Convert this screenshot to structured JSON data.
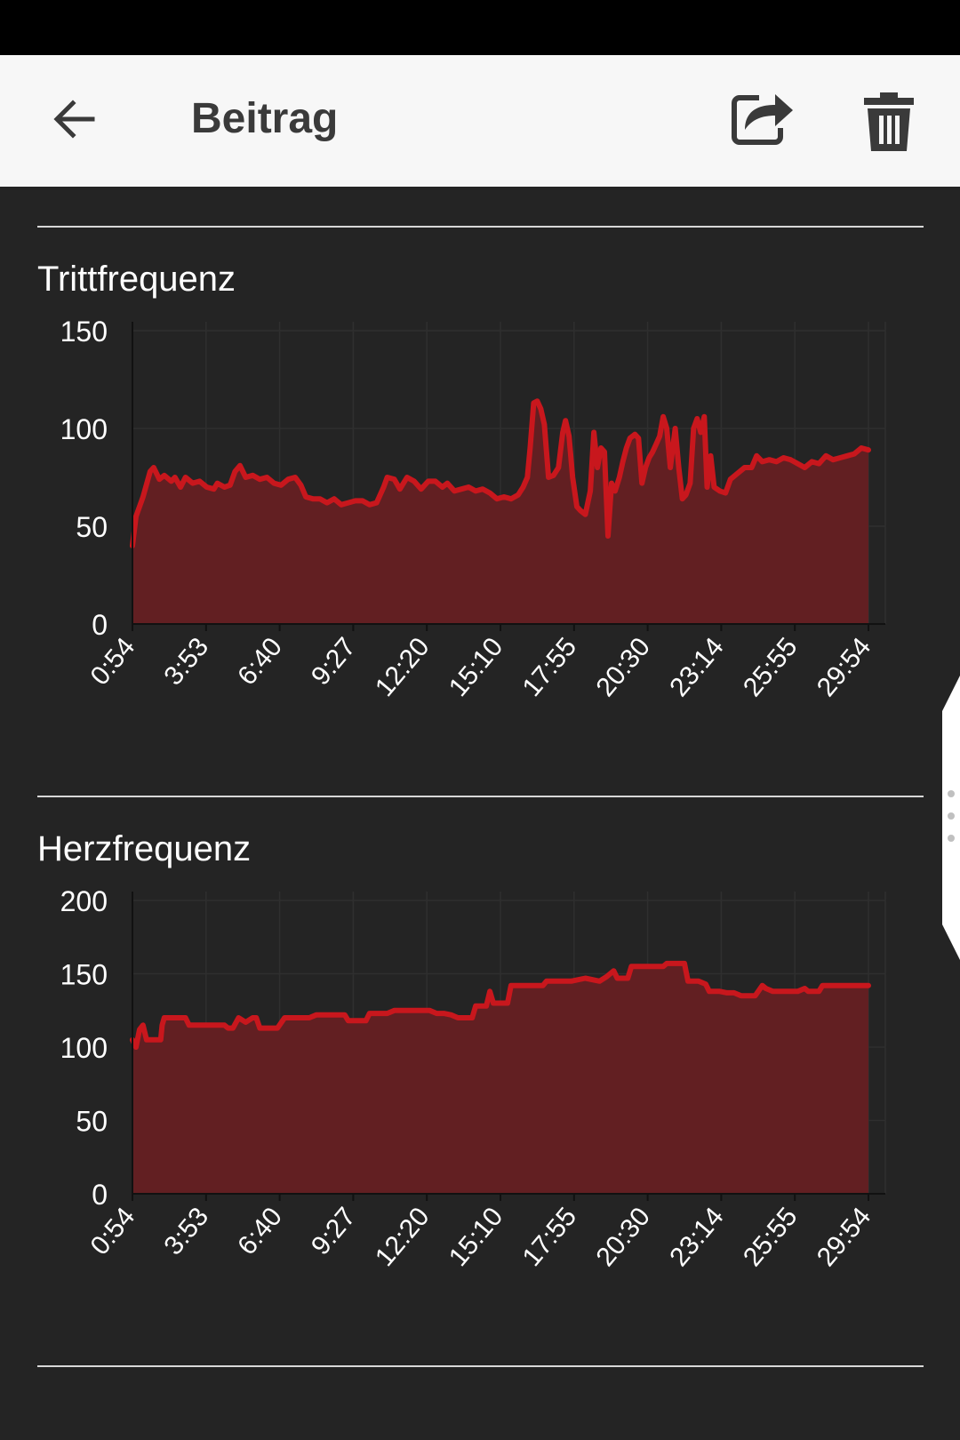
{
  "app_bar": {
    "title": "Beitrag",
    "back_icon": "arrow-left-icon",
    "share_icon": "share-icon",
    "delete_icon": "trash-icon"
  },
  "colors": {
    "line": "#c8171d",
    "fill": "#621f22",
    "background": "#242424",
    "app_bar": "#f7f7f7"
  },
  "charts": [
    {
      "title": "Trittfrequenz"
    },
    {
      "title": "Herzfrequenz"
    }
  ],
  "chart_data": [
    {
      "type": "area",
      "title": "Trittfrequenz",
      "xlabel": "",
      "ylabel": "",
      "ylim": [
        0,
        150
      ],
      "yticks": [
        0,
        50,
        100,
        150
      ],
      "x_tick_labels": [
        "0:54",
        "3:53",
        "6:40",
        "9:27",
        "12:20",
        "15:10",
        "17:55",
        "20:30",
        "23:14",
        "25:55",
        "29:54"
      ],
      "xlim": [
        0,
        10.4
      ],
      "grid": true,
      "series": [
        {
          "points": [
            [
              0,
              40
            ],
            [
              0.05,
              55
            ],
            [
              0.15,
              65
            ],
            [
              0.25,
              78
            ],
            [
              0.3,
              80
            ],
            [
              0.38,
              74
            ],
            [
              0.45,
              76
            ],
            [
              0.55,
              73
            ],
            [
              0.6,
              75
            ],
            [
              0.68,
              70
            ],
            [
              0.75,
              75
            ],
            [
              0.85,
              72
            ],
            [
              0.95,
              73
            ],
            [
              1.05,
              70
            ],
            [
              1.15,
              69
            ],
            [
              1.2,
              72
            ],
            [
              1.3,
              70
            ],
            [
              1.38,
              71
            ],
            [
              1.45,
              78
            ],
            [
              1.52,
              81
            ],
            [
              1.6,
              75
            ],
            [
              1.7,
              76
            ],
            [
              1.8,
              74
            ],
            [
              1.9,
              75
            ],
            [
              2.0,
              72
            ],
            [
              2.1,
              71
            ],
            [
              2.2,
              74
            ],
            [
              2.3,
              75
            ],
            [
              2.38,
              71
            ],
            [
              2.45,
              65
            ],
            [
              2.55,
              64
            ],
            [
              2.65,
              64
            ],
            [
              2.75,
              62
            ],
            [
              2.85,
              64
            ],
            [
              2.95,
              61
            ],
            [
              3.05,
              62
            ],
            [
              3.15,
              63
            ],
            [
              3.25,
              63
            ],
            [
              3.35,
              61
            ],
            [
              3.45,
              62
            ],
            [
              3.55,
              70
            ],
            [
              3.6,
              75
            ],
            [
              3.7,
              74
            ],
            [
              3.78,
              69
            ],
            [
              3.88,
              75
            ],
            [
              3.98,
              73
            ],
            [
              4.08,
              69
            ],
            [
              4.18,
              73
            ],
            [
              4.28,
              73
            ],
            [
              4.38,
              70
            ],
            [
              4.45,
              72
            ],
            [
              4.55,
              68
            ],
            [
              4.65,
              69
            ],
            [
              4.75,
              70
            ],
            [
              4.85,
              68
            ],
            [
              4.95,
              69
            ],
            [
              5.05,
              67
            ],
            [
              5.15,
              64
            ],
            [
              5.25,
              65
            ],
            [
              5.35,
              64
            ],
            [
              5.45,
              66
            ],
            [
              5.52,
              70
            ],
            [
              5.58,
              75
            ],
            [
              5.62,
              90
            ],
            [
              5.67,
              113
            ],
            [
              5.72,
              114
            ],
            [
              5.77,
              110
            ],
            [
              5.82,
              102
            ],
            [
              5.88,
              75
            ],
            [
              5.95,
              76
            ],
            [
              6.02,
              80
            ],
            [
              6.08,
              98
            ],
            [
              6.12,
              104
            ],
            [
              6.17,
              96
            ],
            [
              6.22,
              75
            ],
            [
              6.28,
              60
            ],
            [
              6.33,
              58
            ],
            [
              6.4,
              56
            ],
            [
              6.47,
              68
            ],
            [
              6.52,
              98
            ],
            [
              6.57,
              80
            ],
            [
              6.62,
              90
            ],
            [
              6.67,
              88
            ],
            [
              6.72,
              45
            ],
            [
              6.77,
              72
            ],
            [
              6.82,
              68
            ],
            [
              6.88,
              75
            ],
            [
              6.93,
              83
            ],
            [
              6.98,
              90
            ],
            [
              7.03,
              95
            ],
            [
              7.1,
              97
            ],
            [
              7.15,
              95
            ],
            [
              7.2,
              72
            ],
            [
              7.25,
              80
            ],
            [
              7.3,
              85
            ],
            [
              7.35,
              88
            ],
            [
              7.4,
              92
            ],
            [
              7.45,
              96
            ],
            [
              7.5,
              106
            ],
            [
              7.55,
              100
            ],
            [
              7.6,
              80
            ],
            [
              7.67,
              100
            ],
            [
              7.72,
              80
            ],
            [
              7.77,
              64
            ],
            [
              7.82,
              66
            ],
            [
              7.88,
              72
            ],
            [
              7.93,
              100
            ],
            [
              7.98,
              105
            ],
            [
              8.03,
              98
            ],
            [
              8.08,
              106
            ],
            [
              8.12,
              70
            ],
            [
              8.17,
              86
            ],
            [
              8.22,
              70
            ],
            [
              8.3,
              68
            ],
            [
              8.38,
              67
            ],
            [
              8.45,
              74
            ],
            [
              8.55,
              77
            ],
            [
              8.65,
              80
            ],
            [
              8.75,
              80
            ],
            [
              8.82,
              86
            ],
            [
              8.9,
              83
            ],
            [
              9.0,
              84
            ],
            [
              9.1,
              83
            ],
            [
              9.2,
              85
            ],
            [
              9.3,
              84
            ],
            [
              9.4,
              82
            ],
            [
              9.5,
              80
            ],
            [
              9.6,
              83
            ],
            [
              9.7,
              82
            ],
            [
              9.8,
              86
            ],
            [
              9.9,
              84
            ],
            [
              10.0,
              85
            ],
            [
              10.1,
              86
            ],
            [
              10.2,
              87
            ],
            [
              10.3,
              90
            ],
            [
              10.4,
              89
            ]
          ]
        }
      ]
    },
    {
      "type": "area",
      "title": "Herzfrequenz",
      "xlabel": "",
      "ylabel": "",
      "ylim": [
        0,
        200
      ],
      "yticks": [
        0,
        50,
        100,
        150,
        200
      ],
      "x_tick_labels": [
        "0:54",
        "3:53",
        "6:40",
        "9:27",
        "12:20",
        "15:10",
        "17:55",
        "20:30",
        "23:14",
        "25:55",
        "29:54"
      ],
      "xlim": [
        0,
        10.4
      ],
      "grid": true,
      "series": [
        {
          "points": [
            [
              0,
              105
            ],
            [
              0.05,
              100
            ],
            [
              0.1,
              112
            ],
            [
              0.15,
              115
            ],
            [
              0.2,
              105
            ],
            [
              0.4,
              105
            ],
            [
              0.42,
              115
            ],
            [
              0.45,
              120
            ],
            [
              0.75,
              120
            ],
            [
              0.8,
              115
            ],
            [
              1.3,
              115
            ],
            [
              1.35,
              113
            ],
            [
              1.42,
              113
            ],
            [
              1.5,
              120
            ],
            [
              1.6,
              117
            ],
            [
              1.7,
              120
            ],
            [
              1.75,
              120
            ],
            [
              1.8,
              113
            ],
            [
              2.0,
              113
            ],
            [
              2.05,
              113
            ],
            [
              2.15,
              120
            ],
            [
              2.5,
              120
            ],
            [
              2.6,
              122
            ],
            [
              2.8,
              122
            ],
            [
              3.0,
              122
            ],
            [
              3.05,
              118
            ],
            [
              3.3,
              118
            ],
            [
              3.35,
              123
            ],
            [
              3.6,
              123
            ],
            [
              3.7,
              125
            ],
            [
              4.0,
              125
            ],
            [
              4.2,
              125
            ],
            [
              4.3,
              123
            ],
            [
              4.4,
              123
            ],
            [
              4.5,
              122
            ],
            [
              4.6,
              120
            ],
            [
              4.8,
              120
            ],
            [
              4.85,
              128
            ],
            [
              5.0,
              128
            ],
            [
              5.05,
              138
            ],
            [
              5.1,
              130
            ],
            [
              5.3,
              130
            ],
            [
              5.35,
              142
            ],
            [
              5.8,
              142
            ],
            [
              5.85,
              145
            ],
            [
              6.0,
              145
            ],
            [
              6.2,
              145
            ],
            [
              6.4,
              147
            ],
            [
              6.6,
              145
            ],
            [
              6.7,
              148
            ],
            [
              6.8,
              152
            ],
            [
              6.85,
              147
            ],
            [
              7.0,
              147
            ],
            [
              7.05,
              155
            ],
            [
              7.5,
              155
            ],
            [
              7.55,
              157
            ],
            [
              7.8,
              157
            ],
            [
              7.85,
              145
            ],
            [
              8.0,
              145
            ],
            [
              8.1,
              143
            ],
            [
              8.15,
              138
            ],
            [
              8.3,
              138
            ],
            [
              8.4,
              137
            ],
            [
              8.5,
              137
            ],
            [
              8.6,
              135
            ],
            [
              8.75,
              135
            ],
            [
              8.8,
              135
            ],
            [
              8.9,
              142
            ],
            [
              8.95,
              140
            ],
            [
              9.05,
              138
            ],
            [
              9.15,
              138
            ],
            [
              9.3,
              138
            ],
            [
              9.4,
              138
            ],
            [
              9.5,
              140
            ],
            [
              9.55,
              138
            ],
            [
              9.7,
              138
            ],
            [
              9.75,
              142
            ],
            [
              10.4,
              142
            ]
          ]
        }
      ]
    }
  ]
}
